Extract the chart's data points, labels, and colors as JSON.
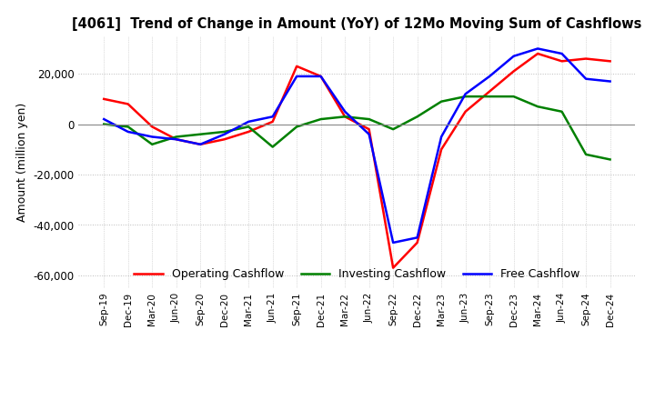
{
  "title": "[4061]  Trend of Change in Amount (YoY) of 12Mo Moving Sum of Cashflows",
  "ylabel": "Amount (million yen)",
  "x_labels": [
    "Sep-19",
    "Dec-19",
    "Mar-20",
    "Jun-20",
    "Sep-20",
    "Dec-20",
    "Mar-21",
    "Jun-21",
    "Sep-21",
    "Dec-21",
    "Mar-22",
    "Jun-22",
    "Sep-22",
    "Dec-22",
    "Mar-23",
    "Jun-23",
    "Sep-23",
    "Dec-23",
    "Mar-24",
    "Jun-24",
    "Sep-24",
    "Dec-24"
  ],
  "operating": [
    10000,
    8000,
    -1000,
    -6000,
    -8000,
    -6000,
    -3000,
    1000,
    23000,
    19000,
    3000,
    -2000,
    -57000,
    -47000,
    -10000,
    5000,
    13000,
    21000,
    28000,
    25000,
    26000,
    25000
  ],
  "investing": [
    0,
    -1000,
    -8000,
    -5000,
    -4000,
    -3000,
    -1000,
    -9000,
    -1000,
    2000,
    3000,
    2000,
    -2000,
    3000,
    9000,
    11000,
    11000,
    11000,
    7000,
    5000,
    -12000,
    -14000
  ],
  "free": [
    2000,
    -3000,
    -5000,
    -6000,
    -8000,
    -4000,
    1000,
    3000,
    19000,
    19000,
    5000,
    -4000,
    -47000,
    -45000,
    -5000,
    12000,
    19000,
    27000,
    30000,
    28000,
    18000,
    17000
  ],
  "ylim": [
    -65000,
    35000
  ],
  "yticks": [
    -60000,
    -40000,
    -20000,
    0,
    20000
  ],
  "operating_color": "#ff0000",
  "investing_color": "#008000",
  "free_color": "#0000ff",
  "background_color": "#ffffff",
  "grid_color": "#bbbbbb"
}
